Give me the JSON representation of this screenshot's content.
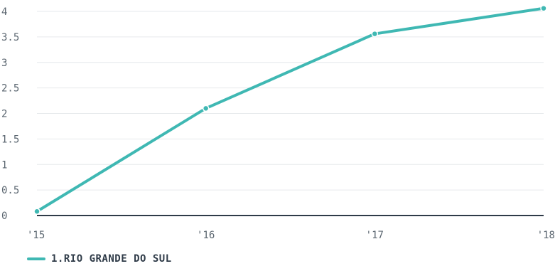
{
  "chart_data": {
    "type": "line",
    "x": [
      "'15",
      "'16",
      "'17",
      "'18"
    ],
    "y_ticks": [
      "0",
      "0.5",
      "1",
      "1.5",
      "2",
      "2.5",
      "3",
      "3.5",
      "4"
    ],
    "ylim": [
      0,
      4
    ],
    "grid": true,
    "legend_position": "bottom-left",
    "series": [
      {
        "name": "1.RIO GRANDE DO SUL",
        "values": [
          0.08,
          2.1,
          3.56,
          4.06
        ],
        "color": "#3fb8b3"
      }
    ],
    "title": "",
    "xlabel": "",
    "ylabel": ""
  }
}
